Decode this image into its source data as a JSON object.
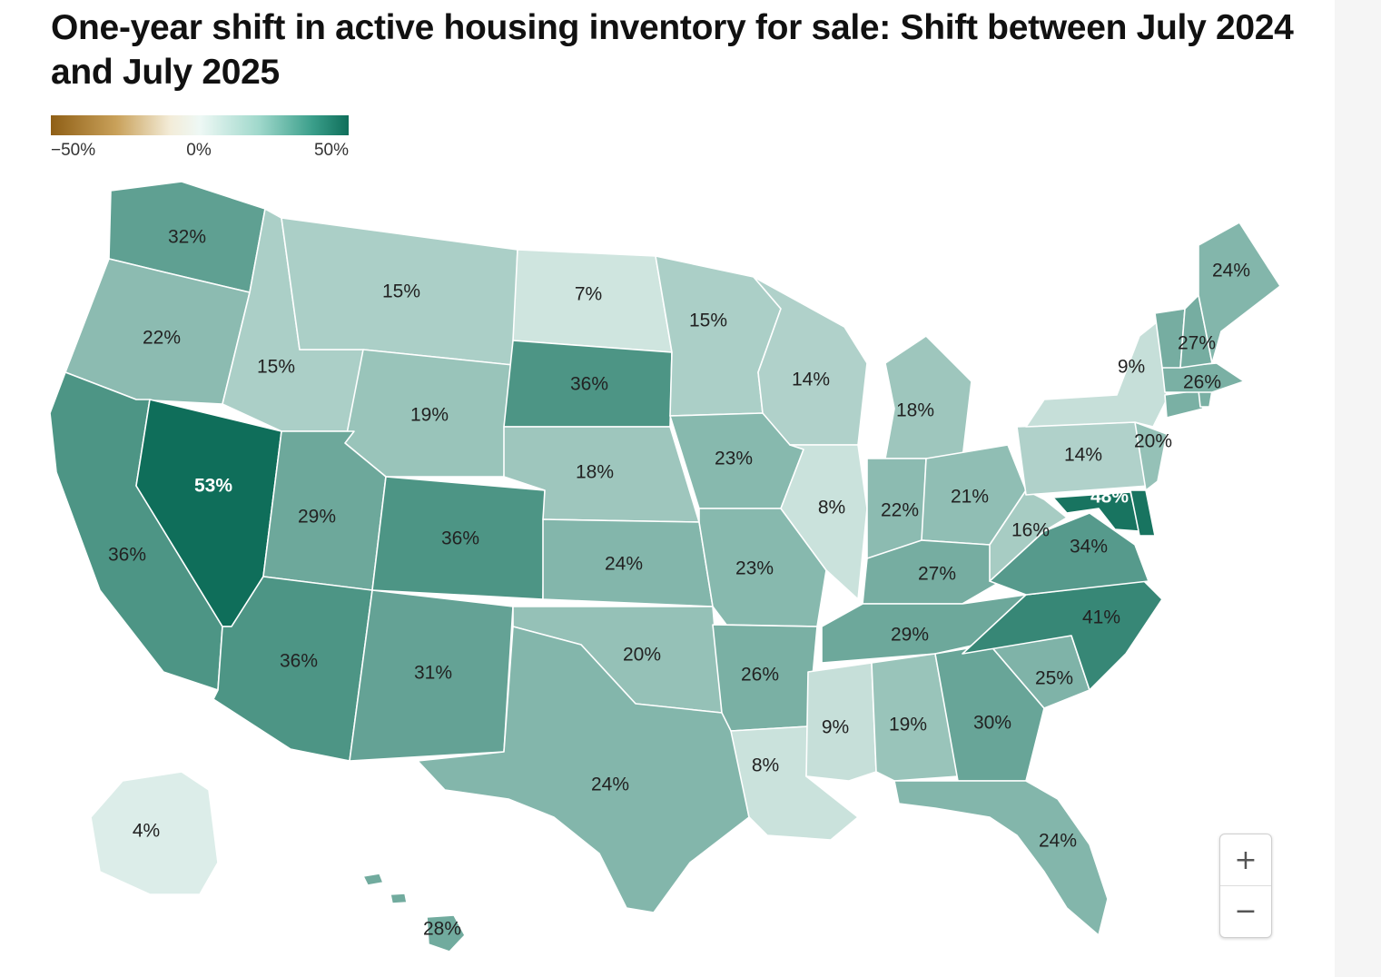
{
  "title": "One-year shift in active housing inventory for sale: Shift between July 2024 and July 2025",
  "legend": {
    "min_label": "−50%",
    "mid_label": "0%",
    "max_label": "50%",
    "domain": [
      -50,
      50
    ],
    "colors": {
      "low": "#8f5f16",
      "zero": "#eef8f5",
      "high": "#0f6e5a"
    }
  },
  "zoom": {
    "in_label": "+",
    "out_label": "−",
    "in_icon": "plus-icon",
    "out_icon": "minus-icon"
  },
  "states": [
    {
      "id": "WA",
      "value": 32,
      "label": "32%"
    },
    {
      "id": "OR",
      "value": 22,
      "label": "22%"
    },
    {
      "id": "CA",
      "value": 36,
      "label": "36%"
    },
    {
      "id": "NV",
      "value": 53,
      "label": "53%"
    },
    {
      "id": "ID",
      "value": 15,
      "label": "15%"
    },
    {
      "id": "MT",
      "value": 15,
      "label": "15%"
    },
    {
      "id": "WY",
      "value": 19,
      "label": "19%"
    },
    {
      "id": "UT",
      "value": 29,
      "label": "29%"
    },
    {
      "id": "AZ",
      "value": 36,
      "label": "36%"
    },
    {
      "id": "CO",
      "value": 36,
      "label": "36%"
    },
    {
      "id": "NM",
      "value": 31,
      "label": "31%"
    },
    {
      "id": "ND",
      "value": 7,
      "label": "7%"
    },
    {
      "id": "SD",
      "value": 36,
      "label": "36%"
    },
    {
      "id": "NE",
      "value": 18,
      "label": "18%"
    },
    {
      "id": "KS",
      "value": 24,
      "label": "24%"
    },
    {
      "id": "OK",
      "value": 20,
      "label": "20%"
    },
    {
      "id": "TX",
      "value": 24,
      "label": "24%"
    },
    {
      "id": "MN",
      "value": 15,
      "label": "15%"
    },
    {
      "id": "IA",
      "value": 23,
      "label": "23%"
    },
    {
      "id": "MO",
      "value": 23,
      "label": "23%"
    },
    {
      "id": "AR",
      "value": 26,
      "label": "26%"
    },
    {
      "id": "LA",
      "value": 8,
      "label": "8%"
    },
    {
      "id": "WI",
      "value": 14,
      "label": "14%"
    },
    {
      "id": "IL",
      "value": 8,
      "label": "8%"
    },
    {
      "id": "MI",
      "value": 18,
      "label": "18%"
    },
    {
      "id": "IN",
      "value": 22,
      "label": "22%"
    },
    {
      "id": "OH",
      "value": 21,
      "label": "21%"
    },
    {
      "id": "KY",
      "value": 27,
      "label": "27%"
    },
    {
      "id": "TN",
      "value": 29,
      "label": "29%"
    },
    {
      "id": "MS",
      "value": 9,
      "label": "9%"
    },
    {
      "id": "AL",
      "value": 19,
      "label": "19%"
    },
    {
      "id": "GA",
      "value": 30,
      "label": "30%"
    },
    {
      "id": "FL",
      "value": 24,
      "label": "24%"
    },
    {
      "id": "SC",
      "value": 25,
      "label": "25%"
    },
    {
      "id": "NC",
      "value": 41,
      "label": "41%"
    },
    {
      "id": "VA",
      "value": 34,
      "label": "34%"
    },
    {
      "id": "WV",
      "value": 16,
      "label": "16%"
    },
    {
      "id": "MD",
      "value": 48,
      "label": "48%"
    },
    {
      "id": "DE",
      "value": 48
    },
    {
      "id": "PA",
      "value": 14,
      "label": "14%"
    },
    {
      "id": "NJ",
      "value": 20,
      "label": "20%"
    },
    {
      "id": "NY",
      "value": 9,
      "label": "9%"
    },
    {
      "id": "CT",
      "value": 26
    },
    {
      "id": "RI",
      "value": 26
    },
    {
      "id": "MA",
      "value": 26,
      "label": "26%"
    },
    {
      "id": "VT",
      "value": 27
    },
    {
      "id": "NH",
      "value": 27,
      "label": "27%"
    },
    {
      "id": "ME",
      "value": 24,
      "label": "24%"
    },
    {
      "id": "AK",
      "value": 4,
      "label": "4%"
    },
    {
      "id": "HI",
      "value": 28,
      "label": "28%"
    }
  ]
}
